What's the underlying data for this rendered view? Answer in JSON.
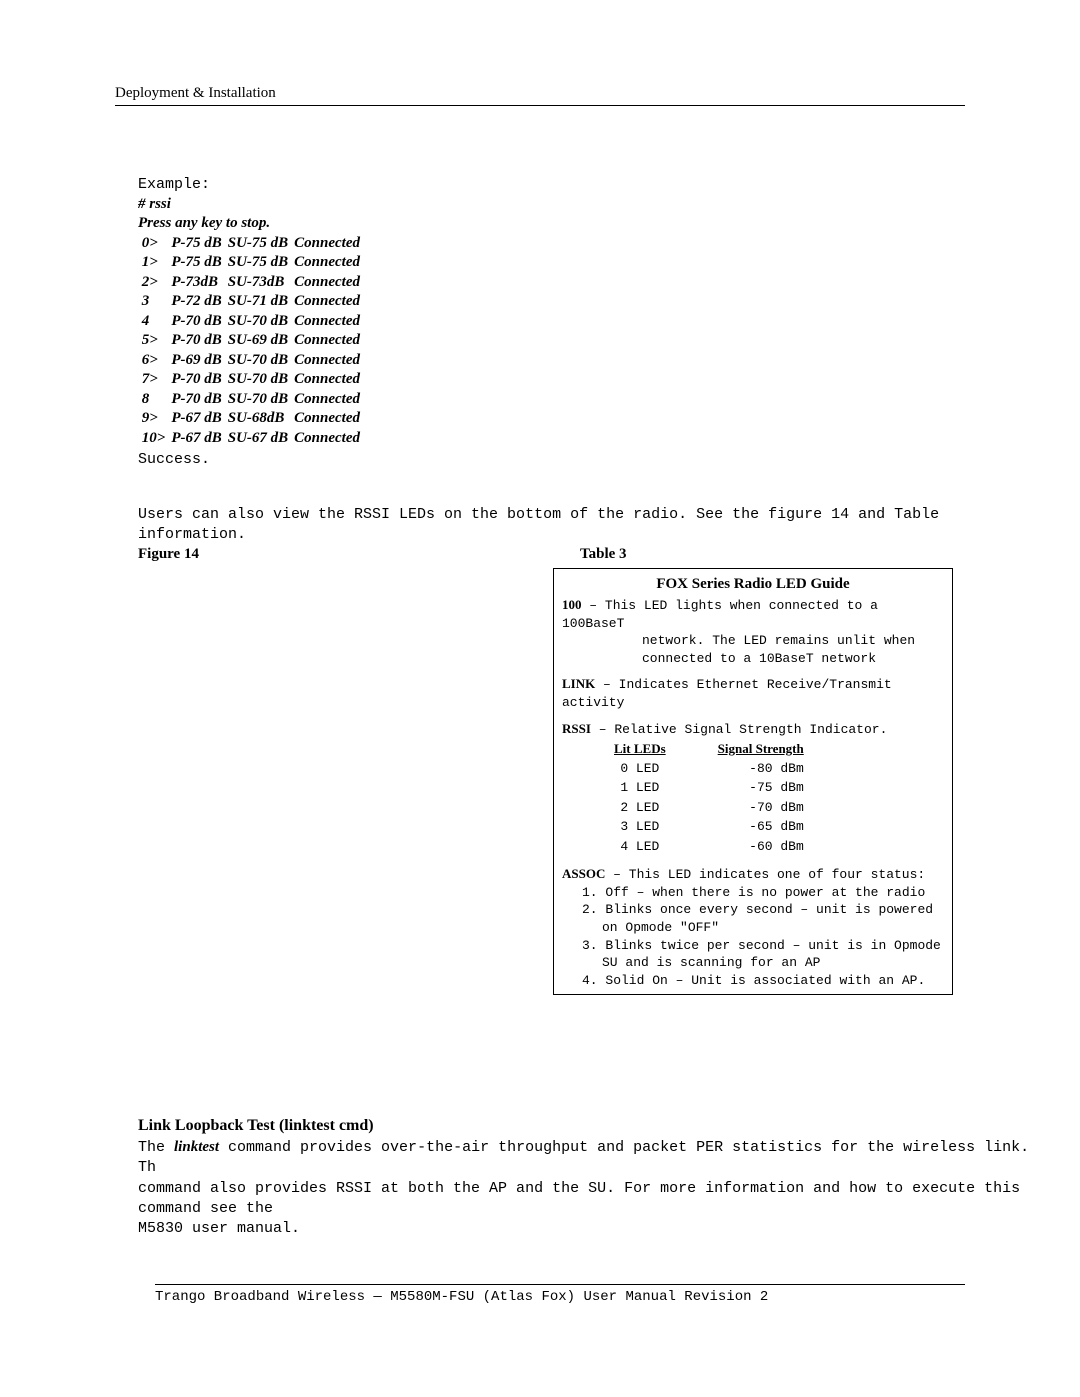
{
  "header": {
    "text": "Deployment & Installation"
  },
  "example": {
    "label": "Example:",
    "cmd": "# rssi",
    "press_key": "Press any key to stop.",
    "rows": [
      {
        "idx": "0>",
        "ap": "P-75 dB",
        "su": "SU-75 dB",
        "status": "Connected"
      },
      {
        "idx": "1>",
        "ap": "P-75 dB",
        "su": "SU-75 dB",
        "status": "Connected"
      },
      {
        "idx": "2>",
        "ap": "P-73dB",
        "su": "SU-73dB",
        "status": "Connected"
      },
      {
        "idx": "3",
        "ap": "P-72 dB",
        "su": "SU-71 dB",
        "status": "Connected"
      },
      {
        "idx": "4",
        "ap": "P-70 dB",
        "su": "SU-70 dB",
        "status": "Connected"
      },
      {
        "idx": "5>",
        "ap": "P-70 dB",
        "su": "SU-69 dB",
        "status": "Connected"
      },
      {
        "idx": "6>",
        "ap": "P-69 dB",
        "su": "SU-70 dB",
        "status": "Connected"
      },
      {
        "idx": "7>",
        "ap": "P-70 dB",
        "su": "SU-70 dB",
        "status": "Connected"
      },
      {
        "idx": "8",
        "ap": "P-70 dB",
        "su": "SU-70 dB",
        "status": "Connected"
      },
      {
        "idx": "9>",
        "ap": "P-67 dB",
        "su": "SU-68dB",
        "status": "Connected"
      },
      {
        "idx": "10>",
        "ap": "P-67 dB",
        "su": "SU-67 dB",
        "status": "Connected"
      }
    ],
    "success": "Success."
  },
  "users_text": {
    "line1": "Users can also view the RSSI LEDs on the bottom of the radio.  See the figure 14 and Table",
    "line2": "information."
  },
  "figure_label": "Figure 14",
  "table_label": "Table 3",
  "led_guide": {
    "title": "FOX Series Radio LED Guide",
    "led100": {
      "label": "100",
      "sep": " – ",
      "text1": "This LED lights when connected to a 100BaseT",
      "text2": "network.  The LED remains unlit when",
      "text3": "connected to a 10BaseT network"
    },
    "link": {
      "label": "LINK",
      "sep": " – ",
      "text": "Indicates Ethernet Receive/Transmit activity"
    },
    "rssi": {
      "label": "RSSI",
      "sep": " – ",
      "text": "Relative Signal Strength Indicator.",
      "col_lit": "Lit LEDs",
      "col_signal": "Signal Strength",
      "rows": [
        {
          "led": "0 LED",
          "dbm": "-80 dBm"
        },
        {
          "led": "1 LED",
          "dbm": "-75 dBm"
        },
        {
          "led": "2 LED",
          "dbm": "-70 dBm"
        },
        {
          "led": "3 LED",
          "dbm": "-65 dBm"
        },
        {
          "led": "4 LED",
          "dbm": "-60 dBm"
        }
      ]
    },
    "assoc": {
      "label": "ASSOC",
      "sep": " – ",
      "text": "This LED indicates one of four status:",
      "items": [
        "Off – when there is no power at the radio",
        "Blinks once every second – unit is powered on Opmode \"OFF\"",
        "Blinks twice per second – unit is in Opmode SU and is scanning for an AP",
        "Solid On – Unit is associated with an AP."
      ]
    }
  },
  "linktest": {
    "heading": "Link Loopback Test (linktest cmd)",
    "body_part1": "The ",
    "cmd": "linktest",
    "body_part2": " command provides over-the-air throughput and packet PER statistics for the wireless link.    Th",
    "body_part3": "command also provides RSSI at both the AP and the SU. For more information and how to execute this command see the",
    "body_part4": "M5830 user manual."
  },
  "footer": {
    "text": "Trango Broadband Wireless — M5580M-FSU (Atlas Fox) User Manual Revision 2"
  }
}
